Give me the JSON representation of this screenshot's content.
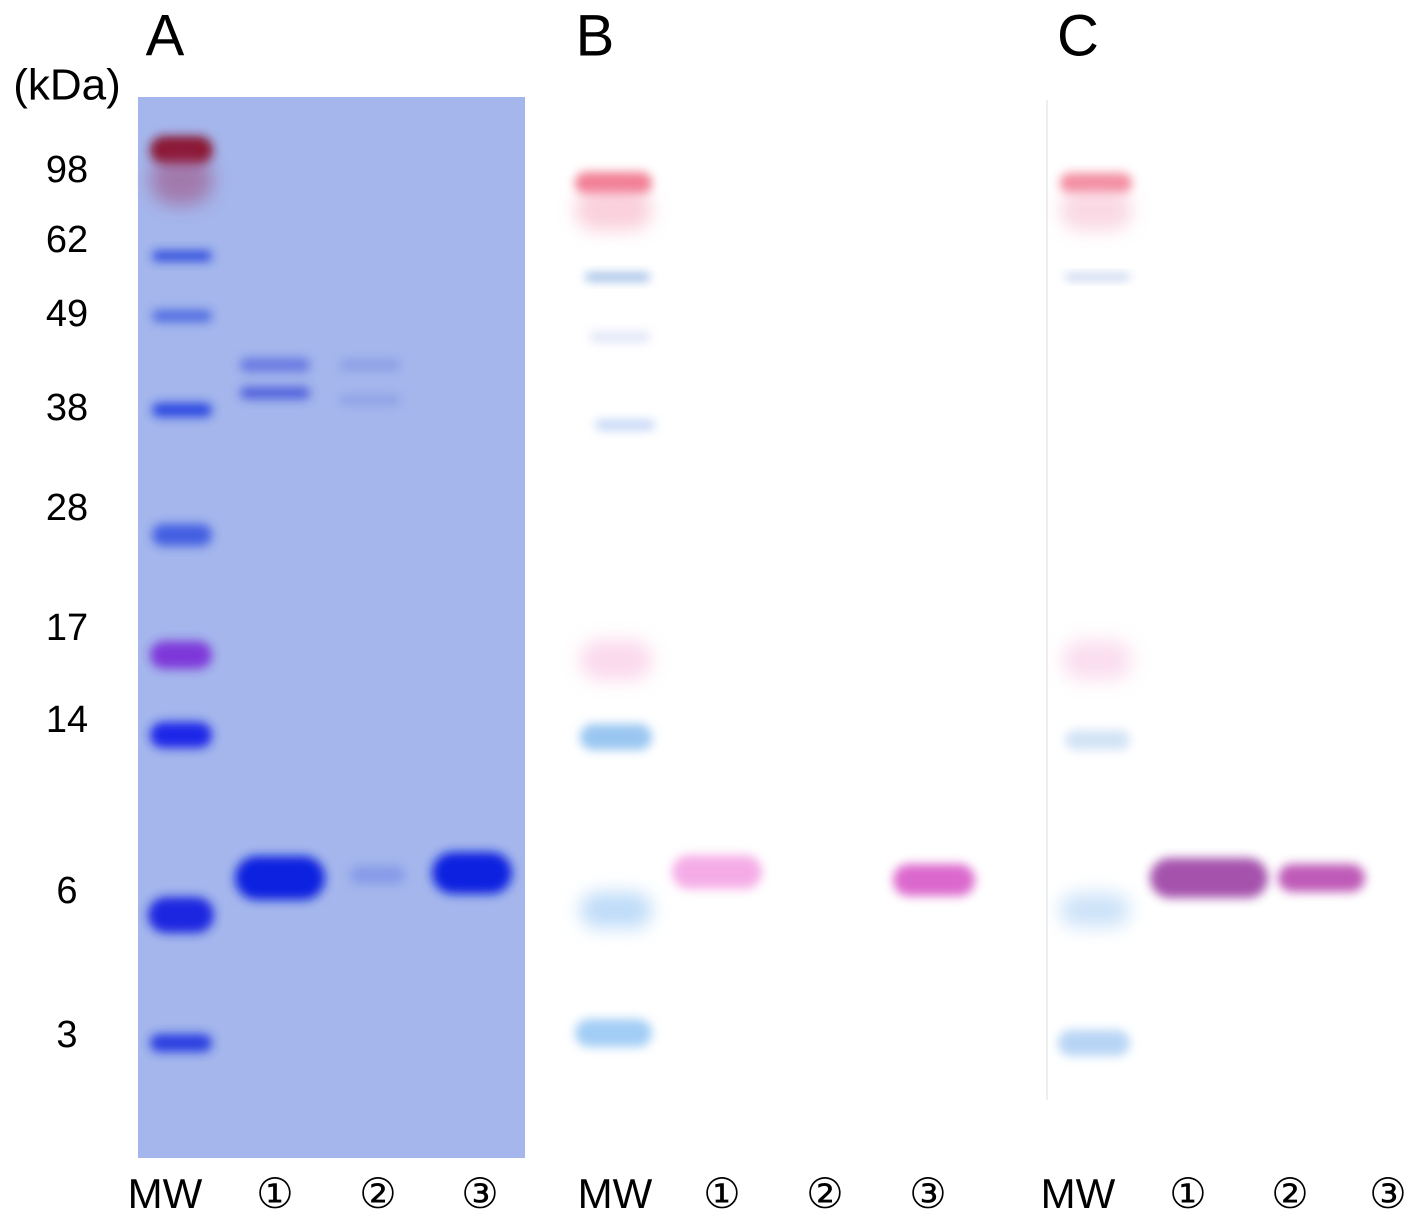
{
  "unit_label": "(kDa)",
  "markers": [
    "98",
    "62",
    "49",
    "38",
    "28",
    "17",
    "14",
    "6",
    "3"
  ],
  "panels": [
    {
      "title": "A",
      "lanes": [
        "MW",
        "①",
        "②",
        "③"
      ]
    },
    {
      "title": "B",
      "lanes": [
        "MW",
        "①",
        "②",
        "③"
      ]
    },
    {
      "title": "C",
      "lanes": [
        "MW",
        "①",
        "②",
        "③"
      ]
    }
  ]
}
